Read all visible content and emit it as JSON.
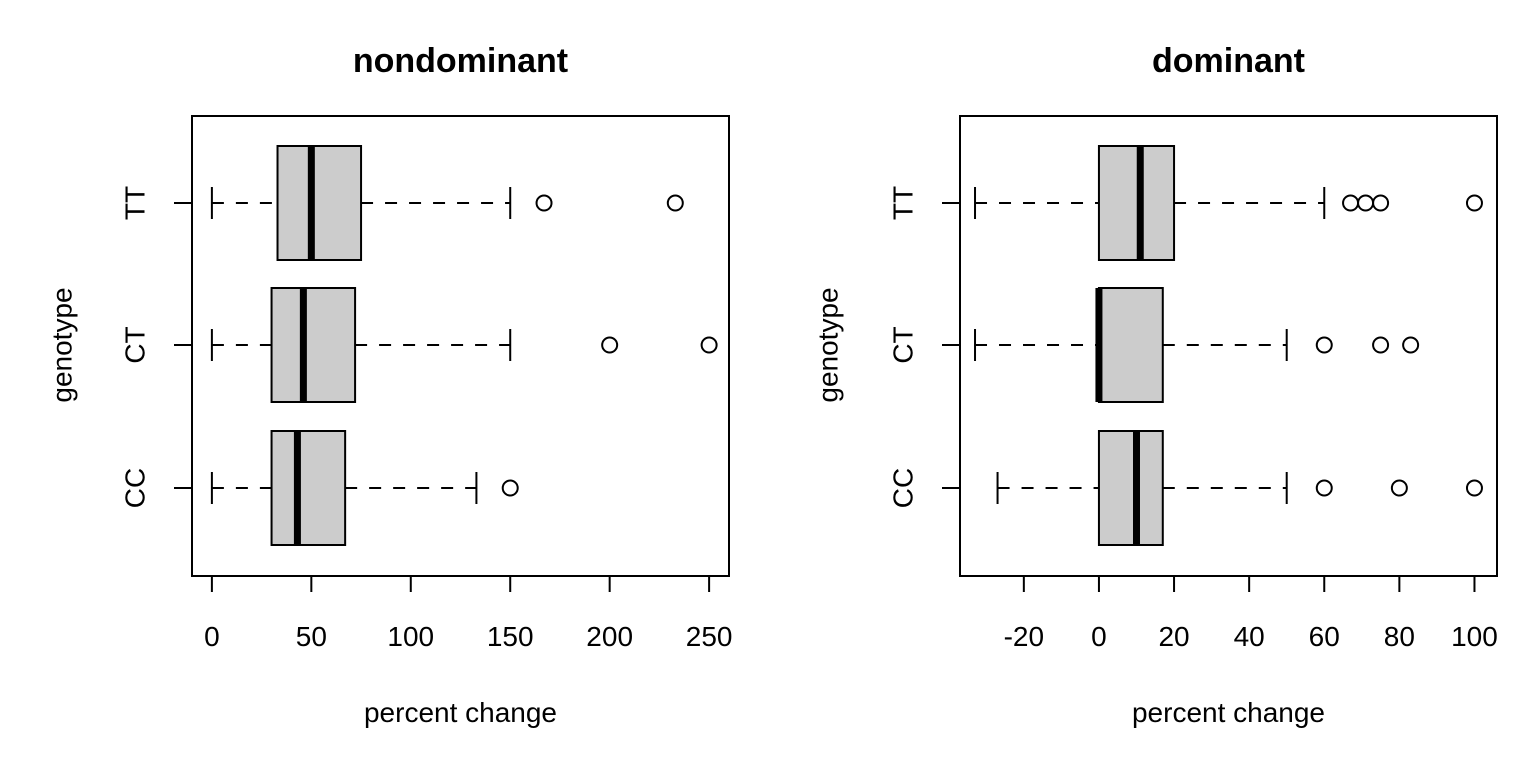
{
  "chart_data": [
    {
      "type": "boxplot",
      "orientation": "horizontal",
      "title": "nondominant",
      "xlabel": "percent change",
      "ylabel": "genotype",
      "xlim": [
        -10,
        260
      ],
      "xticks": [
        0,
        50,
        100,
        150,
        200,
        250
      ],
      "grid": false,
      "categories": [
        "CC",
        "CT",
        "TT"
      ],
      "series": [
        {
          "category": "CC",
          "whisker_low": 0,
          "q1": 30,
          "median": 43,
          "q3": 67,
          "whisker_high": 133,
          "outliers": [
            150
          ]
        },
        {
          "category": "CT",
          "whisker_low": 0,
          "q1": 30,
          "median": 46,
          "q3": 72,
          "whisker_high": 150,
          "outliers": [
            200,
            250
          ]
        },
        {
          "category": "TT",
          "whisker_low": 0,
          "q1": 33,
          "median": 50,
          "q3": 75,
          "whisker_high": 150,
          "outliers": [
            167,
            233
          ]
        }
      ]
    },
    {
      "type": "boxplot",
      "orientation": "horizontal",
      "title": "dominant",
      "xlabel": "percent change",
      "ylabel": "genotype",
      "xlim": [
        -37,
        106
      ],
      "xticks": [
        -20,
        0,
        20,
        40,
        60,
        80,
        100
      ],
      "grid": false,
      "categories": [
        "CC",
        "CT",
        "TT"
      ],
      "series": [
        {
          "category": "CC",
          "whisker_low": -27,
          "q1": 0,
          "median": 10,
          "q3": 17,
          "whisker_high": 50,
          "outliers": [
            60,
            80,
            100
          ]
        },
        {
          "category": "CT",
          "whisker_low": -33,
          "q1": 0,
          "median": 0,
          "q3": 17,
          "whisker_high": 50,
          "outliers": [
            60,
            75,
            83
          ]
        },
        {
          "category": "TT",
          "whisker_low": -33,
          "q1": 0,
          "median": 11,
          "q3": 20,
          "whisker_high": 60,
          "outliers": [
            67,
            71,
            75,
            100
          ]
        }
      ]
    }
  ]
}
